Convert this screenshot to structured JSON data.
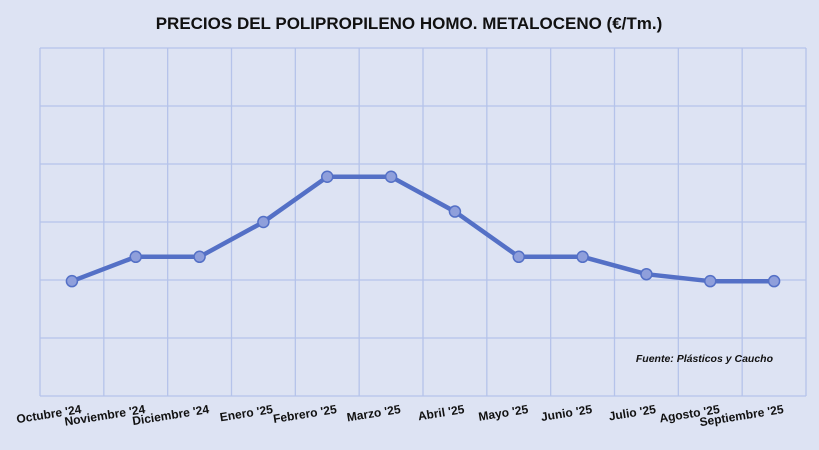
{
  "chart_data": {
    "type": "line",
    "title": "PRECIOS DEL POLIPROPILENO HOMO. METALOCENO (€/Tm.)",
    "categories": [
      "Octubre '24",
      "Noviembre '24",
      "Diciembre '24",
      "Enero '25",
      "Febrero '25",
      "Marzo '25",
      "Abril '25",
      "Mayo '25",
      "Junio '25",
      "Julio '25",
      "Agosto '25",
      "Septiembre '25"
    ],
    "series": [
      {
        "values": [
          0.33,
          0.4,
          0.4,
          0.5,
          0.63,
          0.63,
          0.53,
          0.4,
          0.4,
          0.35,
          0.33,
          0.33
        ]
      }
    ],
    "ylim": [
      0,
      1
    ],
    "y_ticks_shown": false,
    "grid": true,
    "legend": "none",
    "source": "Fuente: Plásticos y Caucho",
    "colors": {
      "line": "#5470c6",
      "marker": "#8f9fdb",
      "background": "#dde3f3",
      "grid": "#b5c3ea"
    }
  }
}
